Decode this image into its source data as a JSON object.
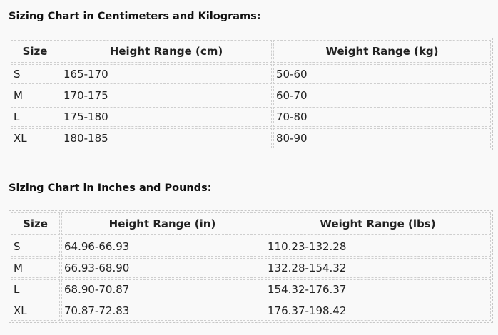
{
  "tables": [
    {
      "title": "Sizing Chart in Centimeters and Kilograms:",
      "headers": [
        "Size",
        "Height Range (cm)",
        "Weight Range (kg)"
      ],
      "rows": [
        [
          "S",
          "165-170",
          "50-60"
        ],
        [
          "M",
          "170-175",
          "60-70"
        ],
        [
          "L",
          "175-180",
          "70-80"
        ],
        [
          "XL",
          "180-185",
          "80-90"
        ]
      ]
    },
    {
      "title": "Sizing Chart in Inches and Pounds:",
      "headers": [
        "Size",
        "Height Range (in)",
        "Weight Range (lbs)"
      ],
      "rows": [
        [
          "S",
          "64.96-66.93",
          "110.23-132.28"
        ],
        [
          "M",
          "66.93-68.90",
          "132.28-154.32"
        ],
        [
          "L",
          "68.90-70.87",
          "154.32-176.37"
        ],
        [
          "XL",
          "70.87-72.83",
          "176.37-198.42"
        ]
      ]
    }
  ]
}
